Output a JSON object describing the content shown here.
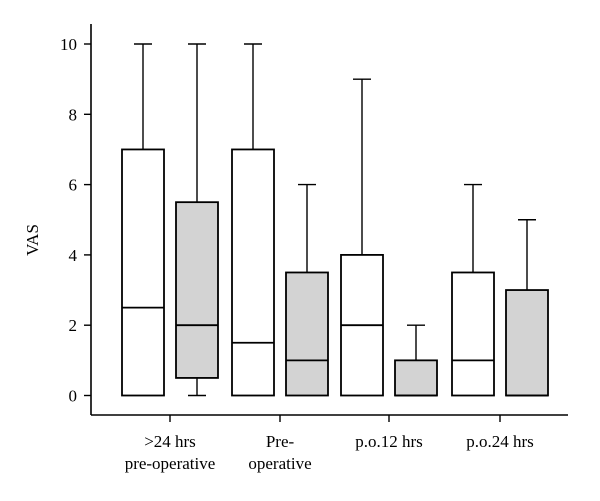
{
  "chart_data": {
    "type": "box",
    "ylabel": "VAS",
    "ylim": [
      0,
      10
    ],
    "yticks": [
      0,
      2,
      4,
      6,
      8,
      10
    ],
    "categories": [
      {
        "lines": [
          ">24 hrs",
          "pre-operative"
        ]
      },
      {
        "lines": [
          "Pre-",
          "operative"
        ]
      },
      {
        "lines": [
          "p.o.12 hrs"
        ]
      },
      {
        "lines": [
          "p.o.24 hrs"
        ]
      }
    ],
    "group_fill_colors": [
      "#ffffff",
      "#d3d3d3"
    ],
    "boxes": [
      {
        "category": 0,
        "group": 0,
        "min": 0,
        "q1": 0,
        "median": 2.5,
        "q3": 7,
        "max": 10
      },
      {
        "category": 0,
        "group": 1,
        "min": 0,
        "q1": 0.5,
        "median": 2,
        "q3": 5.5,
        "max": 10
      },
      {
        "category": 1,
        "group": 0,
        "min": 0,
        "q1": 0,
        "median": 1.5,
        "q3": 7,
        "max": 10
      },
      {
        "category": 1,
        "group": 1,
        "min": 0,
        "q1": 0,
        "median": 1,
        "q3": 3.5,
        "max": 6
      },
      {
        "category": 2,
        "group": 0,
        "min": 0,
        "q1": 0,
        "median": 2,
        "q3": 4,
        "max": 9
      },
      {
        "category": 2,
        "group": 1,
        "min": 0,
        "q1": 0,
        "median": 0,
        "q3": 1,
        "max": 2
      },
      {
        "category": 3,
        "group": 0,
        "min": 0,
        "q1": 0,
        "median": 1,
        "q3": 3.5,
        "max": 6
      },
      {
        "category": 3,
        "group": 1,
        "min": 0,
        "q1": 0,
        "median": 0,
        "q3": 3,
        "max": 5
      }
    ]
  }
}
